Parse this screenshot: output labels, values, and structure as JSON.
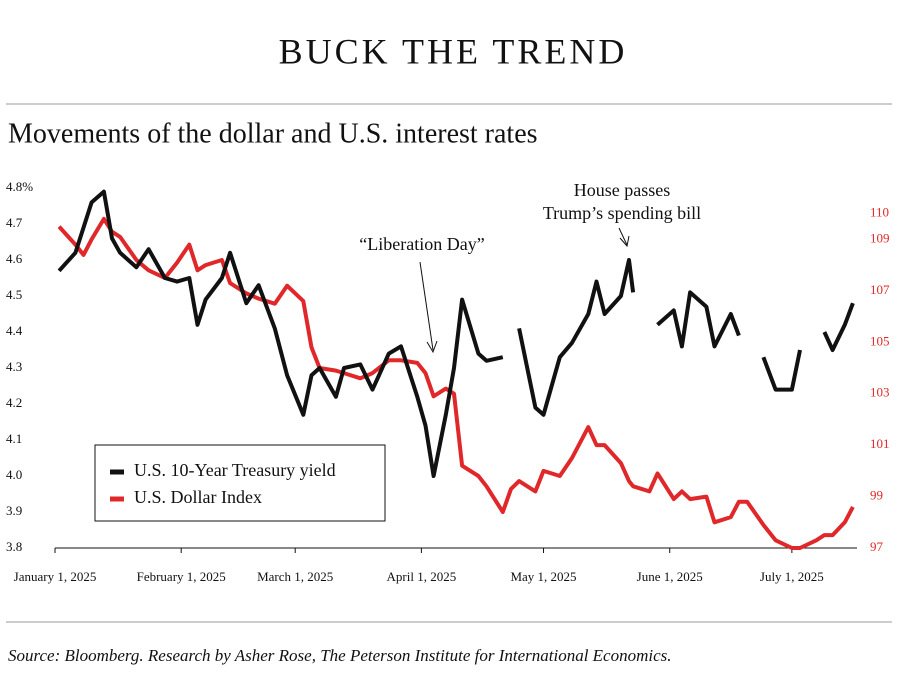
{
  "chart_data": {
    "type": "line",
    "title": "BUCK THE TREND",
    "subtitle": "Movements of the dollar and U.S. interest rates",
    "source": "Source: Bloomberg. Research by Asher Rose, The Peterson Institute for International Economics.",
    "annotations": [
      "“Liberation Day”",
      "House passes",
      "Trump’s spending bill"
    ],
    "legend": "lower left",
    "grid": false,
    "x": [
      "2025-01-02",
      "2025-01-06",
      "2025-01-08",
      "2025-01-10",
      "2025-01-13",
      "2025-01-15",
      "2025-01-17",
      "2025-01-21",
      "2025-01-24",
      "2025-01-28",
      "2025-01-31",
      "2025-02-03",
      "2025-02-05",
      "2025-02-07",
      "2025-02-11",
      "2025-02-13",
      "2025-02-17",
      "2025-02-20",
      "2025-02-24",
      "2025-02-27",
      "2025-03-03",
      "2025-03-05",
      "2025-03-07",
      "2025-03-11",
      "2025-03-13",
      "2025-03-17",
      "2025-03-20",
      "2025-03-24",
      "2025-03-27",
      "2025-03-31",
      "2025-04-02",
      "2025-04-04",
      "2025-04-07",
      "2025-04-09",
      "2025-04-11",
      "2025-04-15",
      "2025-04-17",
      "2025-04-21",
      "2025-04-23",
      "2025-04-25",
      "2025-04-29",
      "2025-05-01",
      "2025-05-05",
      "2025-05-08",
      "2025-05-12",
      "2025-05-14",
      "2025-05-16",
      "2025-05-20",
      "2025-05-22",
      "2025-05-23",
      "2025-05-27",
      "2025-05-29",
      "2025-06-02",
      "2025-06-04",
      "2025-06-06",
      "2025-06-10",
      "2025-06-12",
      "2025-06-16",
      "2025-06-18",
      "2025-06-20",
      "2025-06-24",
      "2025-06-27",
      "2025-07-01",
      "2025-07-03",
      "2025-07-07",
      "2025-07-09",
      "2025-07-11",
      "2025-07-14",
      "2025-07-16"
    ],
    "xlim": [
      "2025-01-01",
      "2025-07-17"
    ],
    "xticks": [
      {
        "value": "2025-01-01",
        "label": "January 1, 2025"
      },
      {
        "value": "2025-02-01",
        "label": "February 1, 2025"
      },
      {
        "value": "2025-03-01",
        "label": "March 1, 2025"
      },
      {
        "value": "2025-04-01",
        "label": "April 1, 2025"
      },
      {
        "value": "2025-05-01",
        "label": "May 1, 2025"
      },
      {
        "value": "2025-06-01",
        "label": "June 1, 2025"
      },
      {
        "value": "2025-07-01",
        "label": "July 1, 2025"
      }
    ],
    "ylim": [
      3.8,
      4.8
    ],
    "yticks": [
      3.8,
      3.9,
      {
        "value": 4,
        "label": "4.0"
      },
      4.1,
      4.2,
      4.3,
      4.4,
      4.5,
      4.6,
      4.7,
      {
        "value": 4.8,
        "label": "4.8%"
      }
    ],
    "y2lim": [
      97,
      111
    ],
    "y2ticks": [
      97,
      99,
      101,
      103,
      105,
      107,
      109,
      110
    ],
    "series": [
      {
        "name": "U.S. 10-Year Treasury yield",
        "color": "#111111",
        "values": [
          4.57,
          4.62,
          4.69,
          4.76,
          4.79,
          4.66,
          4.62,
          4.58,
          4.63,
          4.55,
          4.54,
          4.55,
          4.42,
          4.49,
          4.55,
          4.62,
          4.48,
          4.53,
          4.41,
          4.28,
          4.17,
          4.28,
          4.3,
          4.22,
          4.3,
          4.31,
          4.24,
          4.34,
          4.36,
          4.22,
          4.14,
          4.0,
          4.17,
          4.3,
          4.49,
          4.34,
          4.32,
          4.33,
          null,
          4.41,
          4.19,
          4.17,
          4.33,
          4.37,
          4.45,
          4.54,
          4.45,
          4.5,
          4.6,
          4.51,
          null,
          4.42,
          4.46,
          4.36,
          4.51,
          4.47,
          4.36,
          4.45,
          4.39,
          null,
          4.33,
          4.24,
          4.24,
          4.35,
          null,
          4.4,
          4.35,
          4.42,
          4.48
        ]
      },
      {
        "name": "U.S. Dollar Index",
        "color": "#e0282a",
        "axis": "y2",
        "values": [
          109.5,
          108.8,
          108.4,
          109.0,
          109.8,
          109.3,
          109.1,
          108.2,
          107.8,
          107.5,
          108.1,
          108.8,
          107.8,
          108.0,
          108.2,
          107.3,
          106.9,
          106.7,
          106.5,
          107.2,
          106.6,
          104.8,
          104.0,
          103.9,
          103.8,
          103.6,
          103.8,
          104.3,
          104.3,
          104.2,
          103.8,
          102.9,
          103.2,
          103.0,
          100.2,
          99.8,
          99.4,
          98.4,
          99.3,
          99.6,
          99.2,
          100.0,
          99.8,
          100.5,
          101.7,
          101.0,
          101.0,
          100.3,
          99.6,
          99.4,
          99.2,
          99.9,
          98.9,
          99.2,
          98.9,
          99.0,
          98.0,
          98.2,
          98.8,
          98.8,
          97.9,
          97.3,
          97.0,
          97.0,
          97.3,
          97.5,
          97.5,
          98.0,
          98.6
        ]
      }
    ]
  }
}
